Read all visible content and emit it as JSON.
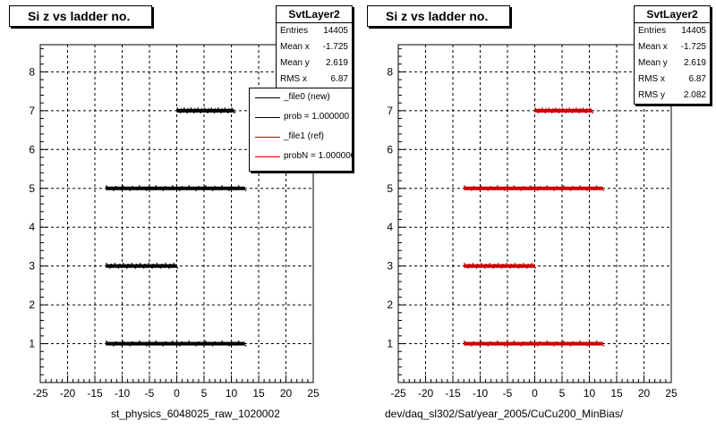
{
  "panels": [
    {
      "title": "Si z vs ladder no.",
      "xtitle": "st_physics_6048025_raw_1020002",
      "stats": {
        "name": "SvtLayer2",
        "rows": [
          {
            "label": "Entries",
            "value": "14405"
          },
          {
            "label": "Mean x",
            "value": "-1.725"
          },
          {
            "label": "Mean y",
            "value": "2.619"
          },
          {
            "label": "RMS x",
            "value": "6.87"
          }
        ]
      },
      "legend": [
        {
          "label": "_file0 (new)",
          "color": "#000000"
        },
        {
          "label": "prob = 1.000000",
          "color": "#000000"
        },
        {
          "label": "_file1 (ref)",
          "color": "#cc0000"
        },
        {
          "label": "probN = 1.000000",
          "color": "#cc0000"
        }
      ]
    },
    {
      "title": "Si z vs ladder no.",
      "xtitle": "dev/daq_sl302/Sat/year_2005/CuCu200_MinBias/",
      "stats": {
        "name": "SvtLayer2",
        "rows": [
          {
            "label": "Entries",
            "value": "14405"
          },
          {
            "label": "Mean x",
            "value": "-1.725"
          },
          {
            "label": "Mean y",
            "value": "2.619"
          },
          {
            "label": "RMS x",
            "value": "6.87"
          },
          {
            "label": "RMS y",
            "value": "2.082"
          }
        ]
      }
    }
  ],
  "chart_data": [
    {
      "type": "scatter",
      "title": "Si z vs ladder no.",
      "xlabel": "st_physics_6048025_raw_1020002",
      "xlim": [
        -25,
        25
      ],
      "ylim": [
        0,
        8.7
      ],
      "xticks": [
        -25,
        -20,
        -15,
        -10,
        -5,
        0,
        5,
        10,
        15,
        20,
        25
      ],
      "yticks": [
        1,
        2,
        3,
        4,
        5,
        6,
        7,
        8
      ],
      "grid": true,
      "color": "#000000",
      "bands": [
        {
          "y": 1,
          "xmin": -13,
          "xmax": 12.5
        },
        {
          "y": 3,
          "xmin": -13,
          "xmax": 0
        },
        {
          "y": 5,
          "xmin": -13,
          "xmax": 12.5
        },
        {
          "y": 7,
          "xmin": 0,
          "xmax": 10.5
        }
      ]
    },
    {
      "type": "scatter",
      "title": "Si z vs ladder no.",
      "xlabel": "dev/daq_sl302/Sat/year_2005/CuCu200_MinBias/",
      "xlim": [
        -25,
        25
      ],
      "ylim": [
        0,
        8.7
      ],
      "xticks": [
        -25,
        -20,
        -15,
        -10,
        -5,
        0,
        5,
        10,
        15,
        20,
        25
      ],
      "yticks": [
        1,
        2,
        3,
        4,
        5,
        6,
        7,
        8
      ],
      "grid": true,
      "color": "#cc0000",
      "bands": [
        {
          "y": 1,
          "xmin": -13,
          "xmax": 12.5
        },
        {
          "y": 3,
          "xmin": -13,
          "xmax": 0
        },
        {
          "y": 5,
          "xmin": -13,
          "xmax": 12.5
        },
        {
          "y": 7,
          "xmin": 0,
          "xmax": 10.5
        }
      ]
    }
  ]
}
